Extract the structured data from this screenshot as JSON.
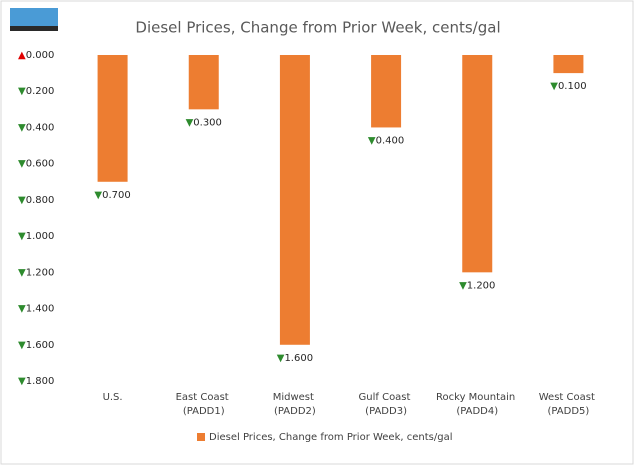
{
  "chart_data": {
    "type": "bar",
    "title": "Diesel Prices, Change from Prior Week, cents/gal",
    "categories": [
      "U.S.",
      "East Coast (PADD1)",
      "Midwest (PADD2)",
      "Gulf Coast (PADD3)",
      "Rocky Mountain (PADD4)",
      "West Coast (PADD5)"
    ],
    "series": [
      {
        "name": "Diesel Prices, Change from Prior Week, cents/gal",
        "color": "#ed7d31",
        "values": [
          -0.7,
          -0.3,
          -1.6,
          -0.4,
          -1.2,
          -0.1
        ],
        "value_labels": [
          "▼0.700",
          "▼0.300",
          "▼1.600",
          "▼0.400",
          "▼1.200",
          "▼0.100"
        ]
      }
    ],
    "ylim": [
      0,
      -1.8
    ],
    "yticks": [
      {
        "value": 0,
        "label": "▲0.000"
      },
      {
        "value": -0.2,
        "label": "▼0.200"
      },
      {
        "value": -0.4,
        "label": "▼0.400"
      },
      {
        "value": -0.6,
        "label": "▼0.600"
      },
      {
        "value": -0.8,
        "label": "▼0.800"
      },
      {
        "value": -1.0,
        "label": "▼1.000"
      },
      {
        "value": -1.2,
        "label": "▼1.200"
      },
      {
        "value": -1.4,
        "label": "▼1.400"
      },
      {
        "value": -1.6,
        "label": "▼1.600"
      },
      {
        "value": -1.8,
        "label": "▼1.800"
      }
    ],
    "grid": false,
    "legend": "bottom"
  }
}
